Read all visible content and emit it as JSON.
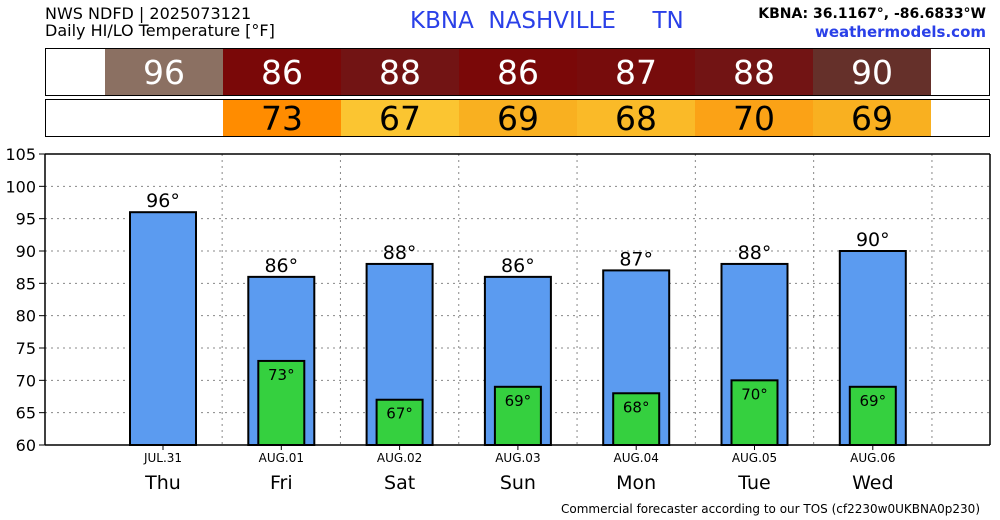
{
  "header": {
    "line1": "NWS NDFD | 2025073121",
    "line2": "Daily HI/LO Temperature [°F]",
    "station": "KBNA  NASHVILLE     TN",
    "coords": "KBNA: 36.1167°, -86.6833°W",
    "site": "weathermodels.com"
  },
  "strip_hi": [
    {
      "value": "96",
      "color": "#8b7062"
    },
    {
      "value": "86",
      "color": "#7a0808"
    },
    {
      "value": "88",
      "color": "#721414"
    },
    {
      "value": "86",
      "color": "#7a0808"
    },
    {
      "value": "87",
      "color": "#770c0c"
    },
    {
      "value": "88",
      "color": "#721414"
    },
    {
      "value": "90",
      "color": "#65302a"
    }
  ],
  "strip_lo": [
    {
      "value": "",
      "color": "#ffffff"
    },
    {
      "value": "73",
      "color": "#ff8c00"
    },
    {
      "value": "67",
      "color": "#fbc531"
    },
    {
      "value": "69",
      "color": "#f9b020"
    },
    {
      "value": "68",
      "color": "#faba28"
    },
    {
      "value": "70",
      "color": "#fba216"
    },
    {
      "value": "69",
      "color": "#f9b020"
    }
  ],
  "chart_data": {
    "type": "bar",
    "categories": [
      "Thu",
      "Fri",
      "Sat",
      "Sun",
      "Mon",
      "Tue",
      "Wed"
    ],
    "dates": [
      "JUL.31",
      "AUG.01",
      "AUG.02",
      "AUG.03",
      "AUG.04",
      "AUG.05",
      "AUG.06"
    ],
    "series": [
      {
        "values": [
          96,
          86,
          88,
          86,
          87,
          88,
          90
        ],
        "labels": [
          "96°",
          "86°",
          "88°",
          "86°",
          "87°",
          "88°",
          "90°"
        ],
        "color": "#5b9bf0"
      },
      {
        "values": [
          null,
          73,
          67,
          69,
          68,
          70,
          69
        ],
        "labels": [
          "",
          "73°",
          "67°",
          "69°",
          "68°",
          "70°",
          "69°"
        ],
        "color": "#35d03f"
      }
    ],
    "ylim": [
      60,
      105
    ],
    "yticks": [
      "60",
      "65",
      "70",
      "75",
      "80",
      "85",
      "90",
      "95",
      "100",
      "105"
    ],
    "grid": true
  },
  "footer": "Commercial forecaster according to our TOS (cf2230w0UKBNA0p230)"
}
